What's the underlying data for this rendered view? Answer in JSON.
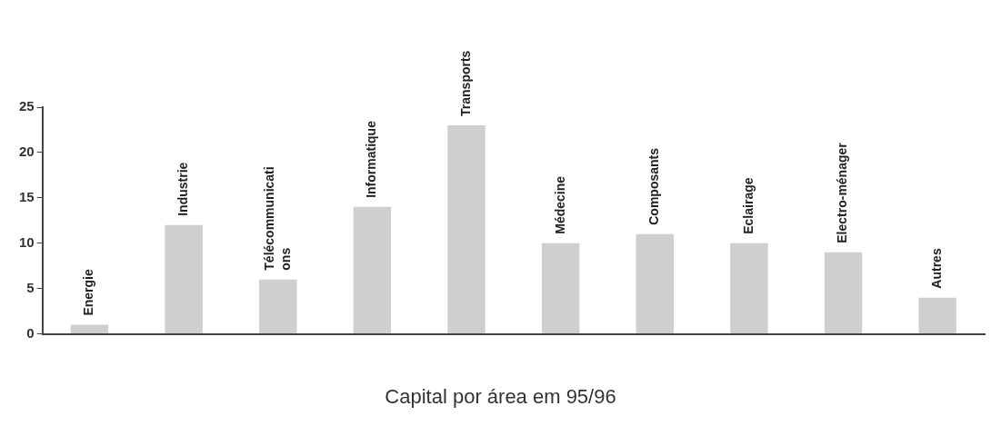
{
  "chart_data": {
    "type": "bar",
    "title": "Capital por área em 95/96",
    "categories": [
      "Energie",
      "Industrie",
      "Télécommunications",
      "Informatique",
      "Transports",
      "Médecine",
      "Composants",
      "Eclairage",
      "Electro-ménager",
      "Autres"
    ],
    "values": [
      1,
      12,
      6,
      14,
      23,
      10,
      11,
      10,
      9,
      4
    ],
    "color": "#cfcfcf",
    "ylim": [
      0,
      25
    ],
    "yticks": [
      0,
      5,
      10,
      15,
      20,
      25
    ],
    "grid": false
  }
}
